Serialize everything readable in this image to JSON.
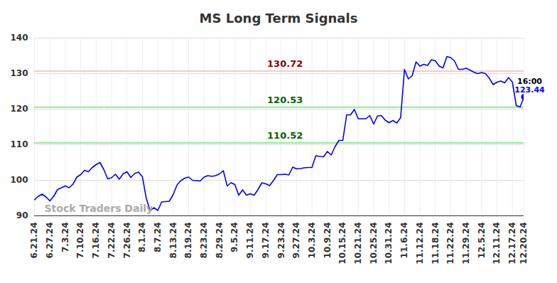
{
  "chart_data": {
    "type": "line",
    "title": "MS Long Term Signals",
    "color": "#0000ff",
    "grid": true,
    "ylim": [
      90,
      140
    ],
    "yticks": [
      90,
      100,
      110,
      120,
      130,
      140
    ],
    "categories": [
      "6.21.24",
      null,
      null,
      null,
      "6.27.24",
      null,
      null,
      null,
      "7.3.24",
      null,
      null,
      null,
      "7.10.24",
      null,
      null,
      null,
      "7.16.24",
      null,
      null,
      null,
      "7.22.24",
      null,
      null,
      null,
      "7.26.24",
      null,
      null,
      null,
      "8.1.24",
      null,
      null,
      null,
      "8.7.24",
      null,
      null,
      null,
      "8.13.24",
      null,
      null,
      null,
      "8.19.24",
      null,
      null,
      null,
      "8.23.24",
      null,
      null,
      null,
      "8.29.24",
      null,
      null,
      null,
      "9.5.24",
      null,
      null,
      null,
      "9.11.24",
      null,
      null,
      null,
      "9.17.24",
      null,
      null,
      null,
      "9.23.24",
      null,
      null,
      null,
      "9.27.24",
      null,
      null,
      null,
      "10.3.24",
      null,
      null,
      null,
      "10.9.24",
      null,
      null,
      null,
      "10.15.24",
      null,
      null,
      null,
      "10.21.24",
      null,
      null,
      null,
      "10.25.24",
      null,
      null,
      null,
      "10.31.24",
      null,
      null,
      null,
      "11.6.24",
      null,
      null,
      null,
      "11.12.24",
      null,
      null,
      null,
      "11.18.24",
      null,
      null,
      null,
      "11.22.24",
      null,
      null,
      null,
      "11.29.24",
      null,
      null,
      null,
      "12.5.24",
      null,
      null,
      null,
      "12.11.24",
      null,
      null,
      null,
      "12.17.24",
      null,
      null,
      "12.20.24"
    ],
    "values": [
      94.5,
      95.5,
      96.1,
      95.3,
      94.2,
      95.5,
      97.4,
      97.9,
      98.4,
      97.9,
      98.9,
      100.9,
      101.6,
      102.8,
      102.4,
      103.6,
      104.4,
      105.0,
      103.0,
      100.4,
      100.7,
      101.7,
      100.3,
      101.8,
      102.4,
      100.8,
      101.9,
      102.3,
      101.0,
      95.0,
      91.4,
      92.3,
      91.5,
      93.9,
      94.0,
      94.1,
      96.0,
      98.7,
      99.9,
      100.6,
      100.9,
      100.0,
      99.9,
      99.8,
      100.9,
      101.3,
      101.1,
      101.3,
      101.8,
      102.7,
      98.4,
      99.3,
      98.8,
      95.8,
      97.3,
      95.8,
      96.2,
      95.8,
      97.4,
      99.3,
      99.0,
      98.5,
      99.9,
      101.6,
      101.6,
      101.7,
      101.5,
      103.7,
      103.2,
      103.3,
      103.5,
      103.6,
      103.6,
      106.9,
      106.7,
      106.6,
      108.1,
      107.1,
      109.5,
      111.2,
      111.2,
      118.4,
      118.4,
      119.9,
      117.3,
      117.3,
      117.3,
      118.2,
      115.8,
      118.1,
      118.2,
      116.9,
      116.2,
      116.8,
      116.1,
      117.6,
      131.2,
      128.5,
      129.4,
      133.3,
      132.1,
      132.6,
      132.3,
      133.9,
      133.6,
      132.1,
      131.6,
      134.8,
      134.5,
      133.5,
      131.2,
      131.2,
      131.5,
      131.0,
      130.4,
      130.0,
      130.3,
      130.0,
      128.7,
      126.9,
      127.6,
      127.9,
      127.4,
      128.9,
      127.6,
      121.0,
      120.6,
      123.44
    ],
    "signals": [
      {
        "value": 130.72,
        "color": "#ffc8c8"
      },
      {
        "value": 120.53,
        "color": "#90ee90"
      },
      {
        "value": 110.52,
        "color": "#90ee90"
      }
    ],
    "annotations": [
      "16:00"
    ],
    "watermark": "Stock Traders Daily"
  }
}
